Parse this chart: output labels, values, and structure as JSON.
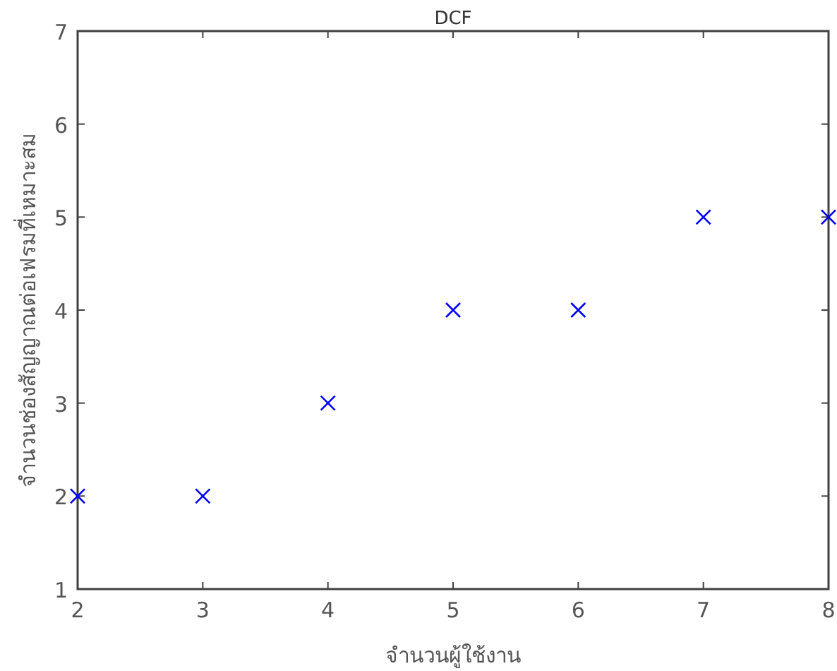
{
  "chart_data": {
    "type": "scatter",
    "title": "DCF",
    "xlabel": "จำนวนผู้ใช้งาน",
    "ylabel": "จำนวนช่องสัญญาณต่อเฟรมที่เหมาะสม",
    "x": [
      2,
      3,
      4,
      5,
      6,
      7,
      8
    ],
    "series": [
      {
        "color": "#0000ff",
        "values": [
          2,
          2,
          3,
          4,
          4,
          5,
          5
        ]
      }
    ],
    "xlim": [
      2,
      8
    ],
    "ylim": [
      1,
      7
    ],
    "xticks": [
      2,
      3,
      4,
      5,
      6,
      7,
      8
    ],
    "yticks": [
      1,
      2,
      3,
      4,
      5,
      6,
      7
    ],
    "marker": "cross",
    "grid": false
  }
}
